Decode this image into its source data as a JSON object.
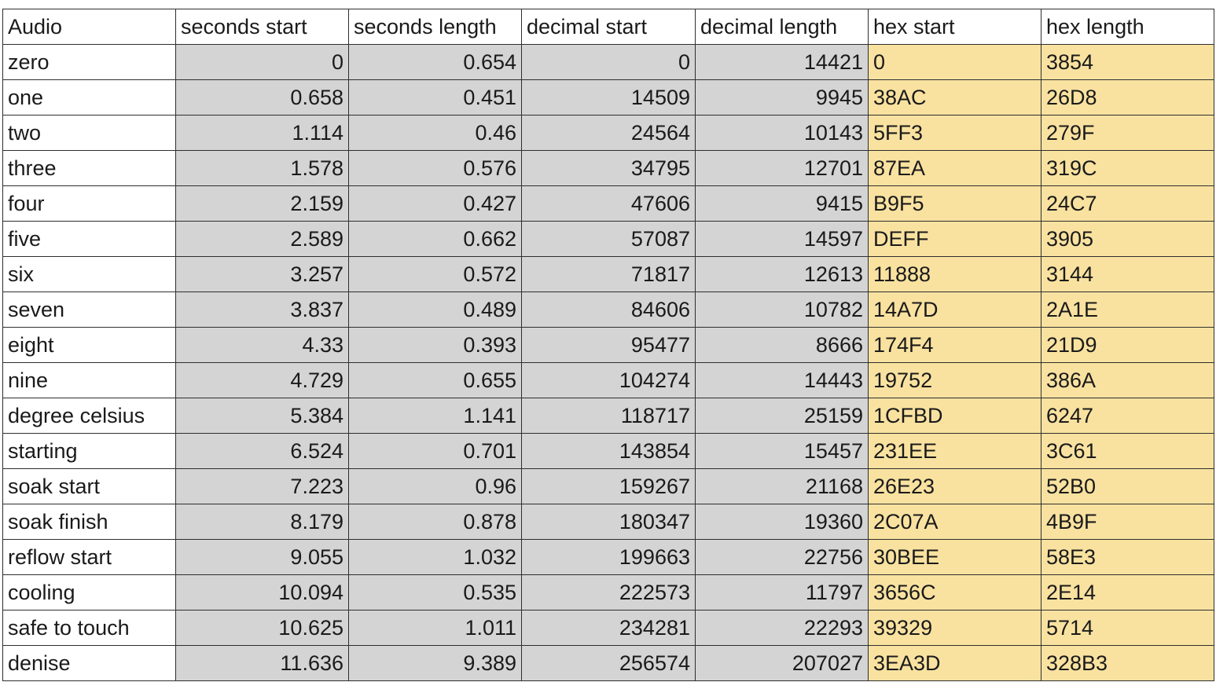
{
  "table": {
    "headers": [
      "Audio",
      "seconds start",
      "seconds length",
      "decimal start",
      "decimal length",
      "hex start",
      "hex length"
    ],
    "rows": [
      [
        "zero",
        "0",
        "0.654",
        "0",
        "14421",
        "0",
        "3854"
      ],
      [
        "one",
        "0.658",
        "0.451",
        "14509",
        "9945",
        "38AC",
        "26D8"
      ],
      [
        "two",
        "1.114",
        "0.46",
        "24564",
        "10143",
        "5FF3",
        "279F"
      ],
      [
        "three",
        "1.578",
        "0.576",
        "34795",
        "12701",
        "87EA",
        "319C"
      ],
      [
        "four",
        "2.159",
        "0.427",
        "47606",
        "9415",
        "B9F5",
        "24C7"
      ],
      [
        "five",
        "2.589",
        "0.662",
        "57087",
        "14597",
        "DEFF",
        "3905"
      ],
      [
        "six",
        "3.257",
        "0.572",
        "71817",
        "12613",
        "11888",
        "3144"
      ],
      [
        "seven",
        "3.837",
        "0.489",
        "84606",
        "10782",
        "14A7D",
        "2A1E"
      ],
      [
        "eight",
        "4.33",
        "0.393",
        "95477",
        "8666",
        "174F4",
        "21D9"
      ],
      [
        "nine",
        "4.729",
        "0.655",
        "104274",
        "14443",
        "19752",
        "386A"
      ],
      [
        "degree celsius",
        "5.384",
        "1.141",
        "118717",
        "25159",
        "1CFBD",
        "6247"
      ],
      [
        "starting",
        "6.524",
        "0.701",
        "143854",
        "15457",
        "231EE",
        "3C61"
      ],
      [
        "soak start",
        "7.223",
        "0.96",
        "159267",
        "21168",
        "26E23",
        "52B0"
      ],
      [
        "soak finish",
        "8.179",
        "0.878",
        "180347",
        "19360",
        "2C07A",
        "4B9F"
      ],
      [
        "reflow start",
        "9.055",
        "1.032",
        "199663",
        "22756",
        "30BEE",
        "58E3"
      ],
      [
        "cooling",
        "10.094",
        "0.535",
        "222573",
        "11797",
        "3656C",
        "2E14"
      ],
      [
        "safe to touch",
        "10.625",
        "1.011",
        "234281",
        "22293",
        "39329",
        "5714"
      ],
      [
        "denise",
        "11.636",
        "9.389",
        "256574",
        "207027",
        "3EA3D",
        "328B3"
      ]
    ]
  },
  "colors": {
    "numeric_fill": "#d4d4d4",
    "hex_fill": "#f9e2a0",
    "border": "#2e2e2e"
  }
}
